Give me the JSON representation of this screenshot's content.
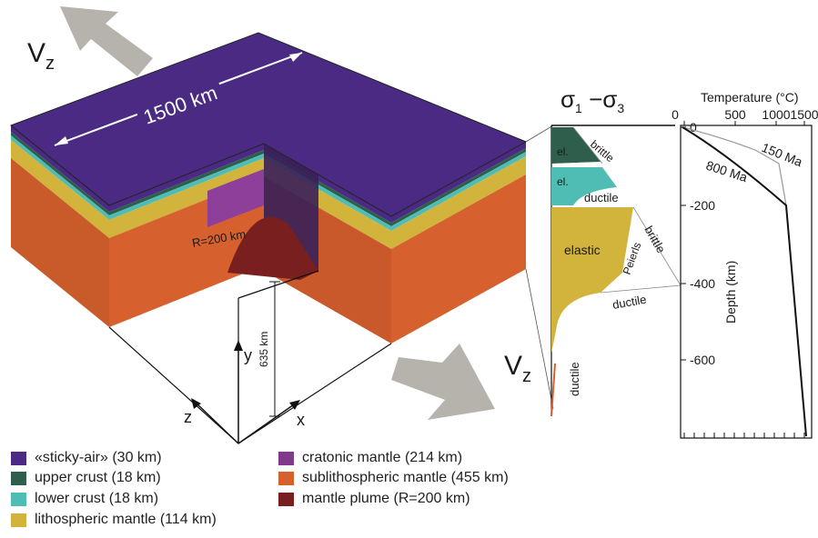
{
  "arrows": {
    "vz_label": "V",
    "vz_sub": "z"
  },
  "model": {
    "width_label": "1500 km",
    "plume_label": "R=200 km",
    "depth_label": "635 km",
    "axis_x": "x",
    "axis_y": "y",
    "axis_z": "z"
  },
  "strength": {
    "title_sigma1": "σ",
    "title_sub1": "1",
    "title_minus": " −σ",
    "title_sub3": "3",
    "labels": {
      "el1": "el.",
      "brittle1": "brittle",
      "el2": "el.",
      "ductile1": "ductile",
      "elastic": "elastic",
      "peierls": "Peierls",
      "brittle2": "brittle",
      "ductile2": "ductile",
      "ductile3": "ductile"
    }
  },
  "temperature": {
    "title": "Temperature (°C)",
    "ticks": [
      "0",
      "500",
      "1000",
      "1500"
    ],
    "ylabel": "Depth (km)",
    "depth_ticks": [
      "0",
      "-200",
      "-400",
      "-600"
    ],
    "curve_800": "800 Ma",
    "curve_150": "150 Ma"
  },
  "legend": [
    {
      "label": "«sticky-air» (30 km)",
      "color": "#4b2a84"
    },
    {
      "label": "upper crust (18 km)",
      "color": "#2e5e4c"
    },
    {
      "label": "lower crust (18 km)",
      "color": "#4fbdb4"
    },
    {
      "label": "lithospheric mantle (114 km)",
      "color": "#d2b33c"
    },
    {
      "label": "cratonic mantle (214 km)",
      "color": "#7f3a8c"
    },
    {
      "label": "sublithospheric mantle (455 km)",
      "color": "#d6612e"
    },
    {
      "label": "mantle plume (R=200 km)",
      "color": "#7a1f1f"
    }
  ],
  "colors": {
    "sticky_air": "#4b2a84",
    "upper_crust": "#2e5e4c",
    "lower_crust": "#4fbdb4",
    "litho": "#d2b33c",
    "craton": "#7f3a8c",
    "sublitho": "#d6612e",
    "plume": "#7a1f1f",
    "arrow": "#b5b3ab"
  }
}
